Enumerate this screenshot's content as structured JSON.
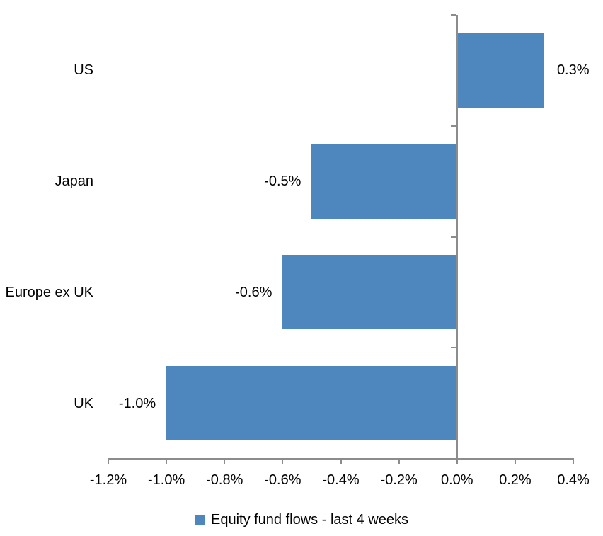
{
  "chart_data": {
    "type": "bar",
    "orientation": "horizontal",
    "title": "",
    "categories": [
      "US",
      "Japan",
      "Europe ex UK",
      "UK"
    ],
    "series": [
      {
        "name": "Equity fund flows - last 4 weeks",
        "values": [
          0.3,
          -0.5,
          -0.6,
          -1.0
        ],
        "data_labels": [
          "0.3%",
          "-0.5%",
          "-0.6%",
          "-1.0%"
        ]
      }
    ],
    "series_name": "Equity fund flows - last 4 weeks",
    "xlabel": "",
    "ylabel": "",
    "xlim": [
      -1.2,
      0.4
    ],
    "x_tick_values": [
      -1.2,
      -1.0,
      -0.8,
      -0.6,
      -0.4,
      -0.2,
      0.0,
      0.2,
      0.4
    ],
    "x_tick_labels": [
      "-1.2%",
      "-1.0%",
      "-0.8%",
      "-0.6%",
      "-0.4%",
      "-0.2%",
      "0.0%",
      "0.2%",
      "0.4%"
    ],
    "grid": false,
    "legend_position": "bottom",
    "bar_color": "#4E86BE",
    "axis_color": "#8C8C8C",
    "label_color": "#000000"
  }
}
